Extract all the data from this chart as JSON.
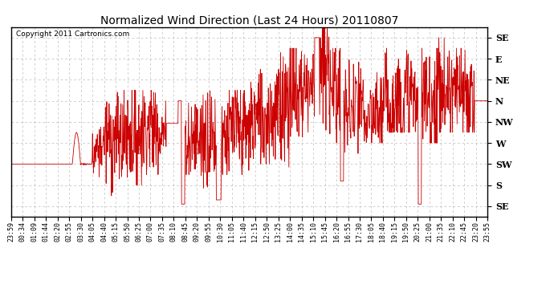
{
  "title": "Normalized Wind Direction (Last 24 Hours) 20110807",
  "copyright": "Copyright 2011 Cartronics.com",
  "line_color": "#cc0000",
  "bg_color": "#ffffff",
  "grid_color": "#aaaaaa",
  "ytick_labels": [
    "SE",
    "E",
    "NE",
    "N",
    "NW",
    "W",
    "SW",
    "S",
    "SE"
  ],
  "ytick_values": [
    8,
    7,
    6,
    5,
    4,
    3,
    2,
    1,
    0
  ],
  "ylim": [
    -0.5,
    8.5
  ],
  "xtick_labels": [
    "23:59",
    "00:34",
    "01:09",
    "01:44",
    "02:20",
    "02:55",
    "03:30",
    "04:05",
    "04:40",
    "05:15",
    "05:50",
    "06:25",
    "07:00",
    "07:35",
    "08:10",
    "08:45",
    "09:20",
    "09:55",
    "10:30",
    "11:05",
    "11:40",
    "12:15",
    "12:50",
    "13:25",
    "14:00",
    "14:35",
    "15:10",
    "15:45",
    "16:20",
    "16:55",
    "17:30",
    "18:05",
    "18:40",
    "19:15",
    "19:50",
    "20:25",
    "21:00",
    "21:35",
    "22:10",
    "22:45",
    "23:20",
    "23:55"
  ]
}
